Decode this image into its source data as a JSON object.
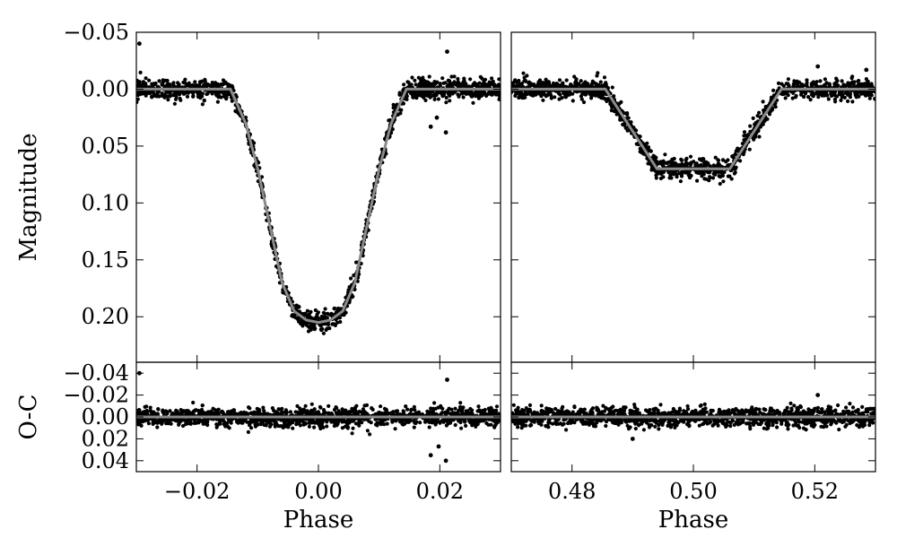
{
  "chart_data": [
    {
      "id": "primary",
      "type": "scatter",
      "title": "",
      "xlabel": "",
      "ylabel": "Magnitude",
      "xlim": [
        -0.03,
        0.03
      ],
      "ylim": [
        -0.05,
        0.24
      ],
      "y_inverted": true,
      "x_ticks": [
        -0.02,
        0.0,
        0.02
      ],
      "y_ticks": [
        -0.05,
        0.0,
        0.05,
        0.1,
        0.15,
        0.2
      ],
      "y_tick_labels": [
        "−0.05",
        "0.00",
        "0.05",
        "0.10",
        "0.15",
        "0.20"
      ],
      "grid": false,
      "series": [
        {
          "kind": "model",
          "color": "#8a8a8a",
          "x": [
            -0.03,
            -0.0145,
            -0.012,
            -0.01,
            -0.008,
            -0.006,
            -0.004,
            -0.002,
            0.0,
            0.002,
            0.004,
            0.006,
            0.008,
            0.01,
            0.012,
            0.0145,
            0.03
          ],
          "y": [
            0.0,
            0.0,
            0.03,
            0.07,
            0.12,
            0.17,
            0.195,
            0.203,
            0.205,
            0.203,
            0.195,
            0.17,
            0.12,
            0.07,
            0.03,
            0.0,
            0.0
          ]
        },
        {
          "kind": "points",
          "color": "#000000",
          "scatter": 0.006,
          "n": 1400,
          "outliers": [
            [
              -0.0295,
              -0.04
            ],
            [
              0.0212,
              -0.033
            ],
            [
              0.021,
              0.038
            ],
            [
              0.0185,
              0.033
            ],
            [
              0.0195,
              0.025
            ]
          ]
        }
      ]
    },
    {
      "id": "secondary",
      "type": "scatter",
      "title": "",
      "xlabel": "",
      "ylabel": "",
      "xlim": [
        0.47,
        0.53
      ],
      "ylim": [
        -0.05,
        0.24
      ],
      "y_inverted": true,
      "x_ticks": [
        0.48,
        0.5,
        0.52
      ],
      "grid": false,
      "series": [
        {
          "kind": "model",
          "color": "#8a8a8a",
          "x": [
            0.47,
            0.4855,
            0.494,
            0.506,
            0.5145,
            0.53
          ],
          "y": [
            0.0,
            0.0,
            0.07,
            0.07,
            0.0,
            0.0
          ]
        },
        {
          "kind": "points",
          "color": "#000000",
          "scatter": 0.006,
          "n": 1400,
          "outliers": [
            [
              0.5205,
              -0.02
            ],
            [
              0.5285,
              -0.017
            ]
          ]
        }
      ]
    },
    {
      "id": "primary-residuals",
      "type": "scatter",
      "title": "",
      "xlabel": "Phase",
      "ylabel": "O-C",
      "xlim": [
        -0.03,
        0.03
      ],
      "ylim": [
        -0.05,
        0.05
      ],
      "y_inverted": true,
      "x_ticks": [
        -0.02,
        0.0,
        0.02
      ],
      "x_tick_labels": [
        "−0.02",
        "0.00",
        "0.02"
      ],
      "y_ticks": [
        -0.04,
        -0.02,
        0.0,
        0.02,
        0.04
      ],
      "y_tick_labels": [
        "−0.04",
        "−0.02",
        "0.00",
        "0.02",
        "0.04"
      ],
      "grid": false,
      "series": [
        {
          "kind": "model",
          "color": "#8a8a8a",
          "x": [
            -0.03,
            0.03
          ],
          "y": [
            0.0,
            0.0
          ]
        },
        {
          "kind": "points",
          "color": "#000000",
          "scatter": 0.006,
          "n": 1400,
          "outliers": [
            [
              -0.0295,
              -0.04
            ],
            [
              0.0212,
              -0.034
            ],
            [
              0.021,
              0.04
            ],
            [
              0.0185,
              0.035
            ],
            [
              0.0198,
              0.027
            ]
          ]
        }
      ]
    },
    {
      "id": "secondary-residuals",
      "type": "scatter",
      "title": "",
      "xlabel": "Phase",
      "ylabel": "",
      "xlim": [
        0.47,
        0.53
      ],
      "ylim": [
        -0.05,
        0.05
      ],
      "y_inverted": true,
      "x_ticks": [
        0.48,
        0.5,
        0.52
      ],
      "x_tick_labels": [
        "0.48",
        "0.50",
        "0.52"
      ],
      "grid": false,
      "series": [
        {
          "kind": "model",
          "color": "#8a8a8a",
          "x": [
            0.47,
            0.53
          ],
          "y": [
            0.0,
            0.0
          ]
        },
        {
          "kind": "points",
          "color": "#000000",
          "scatter": 0.006,
          "n": 1400,
          "outliers": [
            [
              0.5205,
              -0.02
            ],
            [
              0.49,
              0.02
            ]
          ]
        }
      ]
    }
  ]
}
